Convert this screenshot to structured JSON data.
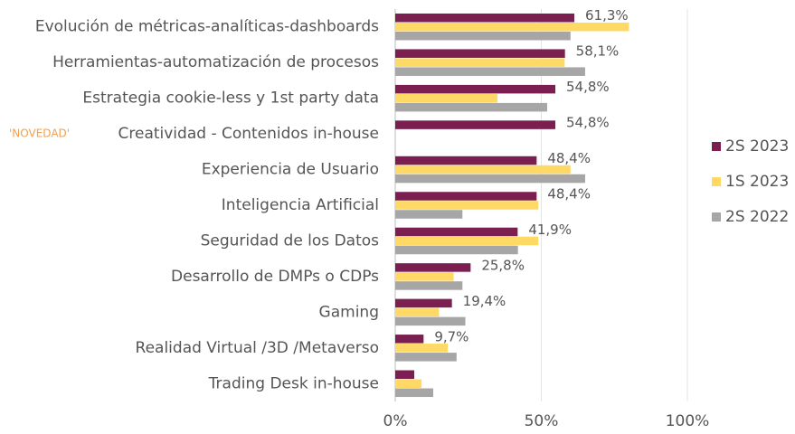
{
  "chart_data": {
    "type": "hbar",
    "categories": [
      "Evolución de métricas-analíticas-dashboards",
      "Herramientas-automatización de procesos",
      "Estrategia cookie-less y 1st party data",
      "Creatividad - Contenidos in-house",
      "Experiencia de Usuario",
      "Inteligencia Artificial",
      "Seguridad de los Datos",
      "Desarrollo de DMPs o CDPs",
      "Gaming",
      "Realidad Virtual /3D /Metaverso",
      "Trading Desk in-house"
    ],
    "series": [
      {
        "name": "2S 2023",
        "color": "#7a1f4f",
        "values": [
          61.3,
          58.1,
          54.8,
          54.8,
          48.4,
          48.4,
          41.9,
          25.8,
          19.4,
          9.7,
          6.5
        ],
        "value_labels": [
          "61,3%",
          "58,1%",
          "54,8%",
          "54,8%",
          "48,4%",
          "48,4%",
          "41,9%",
          "25,8%",
          "19,4%",
          "9,7%",
          null
        ]
      },
      {
        "name": "1S 2023",
        "color": "#ffd966",
        "values": [
          80,
          58,
          35,
          null,
          60,
          49,
          49,
          20,
          15,
          18,
          9
        ]
      },
      {
        "name": "2S 2022",
        "color": "#a6a6a6",
        "values": [
          60,
          65,
          52,
          null,
          65,
          23,
          42,
          23,
          24,
          21,
          13
        ]
      }
    ],
    "xlim": [
      0,
      100
    ],
    "xticks": [
      {
        "value": 0,
        "label": "0%"
      },
      {
        "value": 50,
        "label": "50%"
      },
      {
        "value": 100,
        "label": "100%"
      }
    ],
    "grid": true,
    "legend": "right",
    "annotations": [
      {
        "text": "'NOVEDAD'",
        "category": 3,
        "color": "#f0a050"
      }
    ]
  }
}
